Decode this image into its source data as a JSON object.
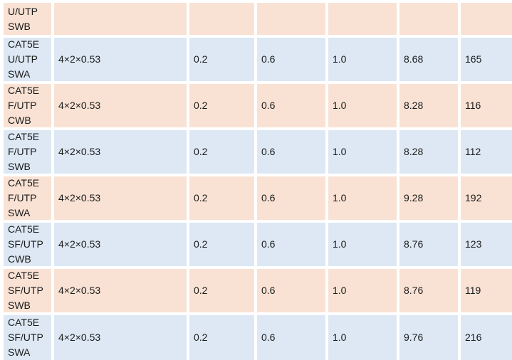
{
  "page": {
    "background": "#ffffff"
  },
  "table": {
    "description_visible": false,
    "colors": {
      "peach_row": "#f9e2d4",
      "blue_row": "#dde8f4",
      "gridline": "#ffffff",
      "text": "#1a1a1a"
    },
    "partial_top_row": {
      "label_lines": [
        "U/UTP",
        "SWB"
      ],
      "cells": [
        "",
        "",
        "",
        "",
        "",
        ""
      ]
    },
    "rows": [
      {
        "label_lines": [
          "CAT5E",
          "U/UTP",
          "SWA"
        ],
        "cells": [
          "4×2×0.53",
          "0.2",
          "0.6",
          "1.0",
          "8.68",
          "165"
        ]
      },
      {
        "label_lines": [
          "CAT5E",
          "F/UTP",
          "CWB"
        ],
        "cells": [
          "4×2×0.53",
          "0.2",
          "0.6",
          "1.0",
          "8.28",
          "116"
        ]
      },
      {
        "label_lines": [
          "CAT5E",
          "F/UTP",
          "SWB"
        ],
        "cells": [
          "4×2×0.53",
          "0.2",
          "0.6",
          "1.0",
          "8.28",
          "112"
        ]
      },
      {
        "label_lines": [
          "CAT5E",
          "F/UTP",
          "SWA"
        ],
        "cells": [
          "4×2×0.53",
          "0.2",
          "0.6",
          "1.0",
          "9.28",
          "192"
        ]
      },
      {
        "label_lines": [
          "CAT5E",
          "SF/UTP",
          "CWB"
        ],
        "cells": [
          "4×2×0.53",
          "0.2",
          "0.6",
          "1.0",
          "8.76",
          "123"
        ]
      },
      {
        "label_lines": [
          "CAT5E",
          "SF/UTP",
          "SWB"
        ],
        "cells": [
          "4×2×0.53",
          "0.2",
          "0.6",
          "1.0",
          "8.76",
          "119"
        ]
      },
      {
        "label_lines": [
          "CAT5E",
          "SF/UTP",
          "SWA"
        ],
        "cells": [
          "4×2×0.53",
          "0.2",
          "0.6",
          "1.0",
          "9.76",
          "216"
        ]
      }
    ]
  }
}
